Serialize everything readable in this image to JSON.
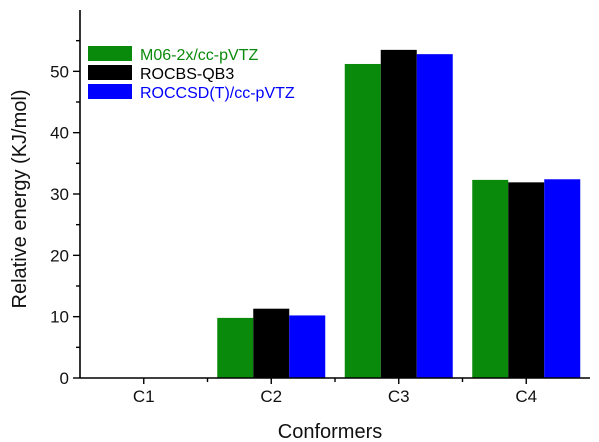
{
  "chart_data": {
    "type": "bar",
    "categories": [
      "C1",
      "C2",
      "C3",
      "C4"
    ],
    "series": [
      {
        "name": "M06-2x/cc-pVTZ",
        "color": "#0a8a0a",
        "values": [
          0,
          9.8,
          51.2,
          32.3
        ]
      },
      {
        "name": "ROCBS-QB3",
        "color": "#000000",
        "values": [
          0,
          11.3,
          53.5,
          31.9
        ]
      },
      {
        "name": "ROCCSD(T)/cc-pVTZ",
        "color": "#0000ff",
        "values": [
          0,
          10.2,
          52.8,
          32.4
        ]
      }
    ],
    "xlabel": "Conformers",
    "ylabel": "Relative energy (KJ/mol)",
    "ylim": [
      0,
      60
    ],
    "yticks": [
      0,
      10,
      20,
      30,
      40,
      50
    ],
    "grid": false,
    "legend_position": "top-left"
  }
}
